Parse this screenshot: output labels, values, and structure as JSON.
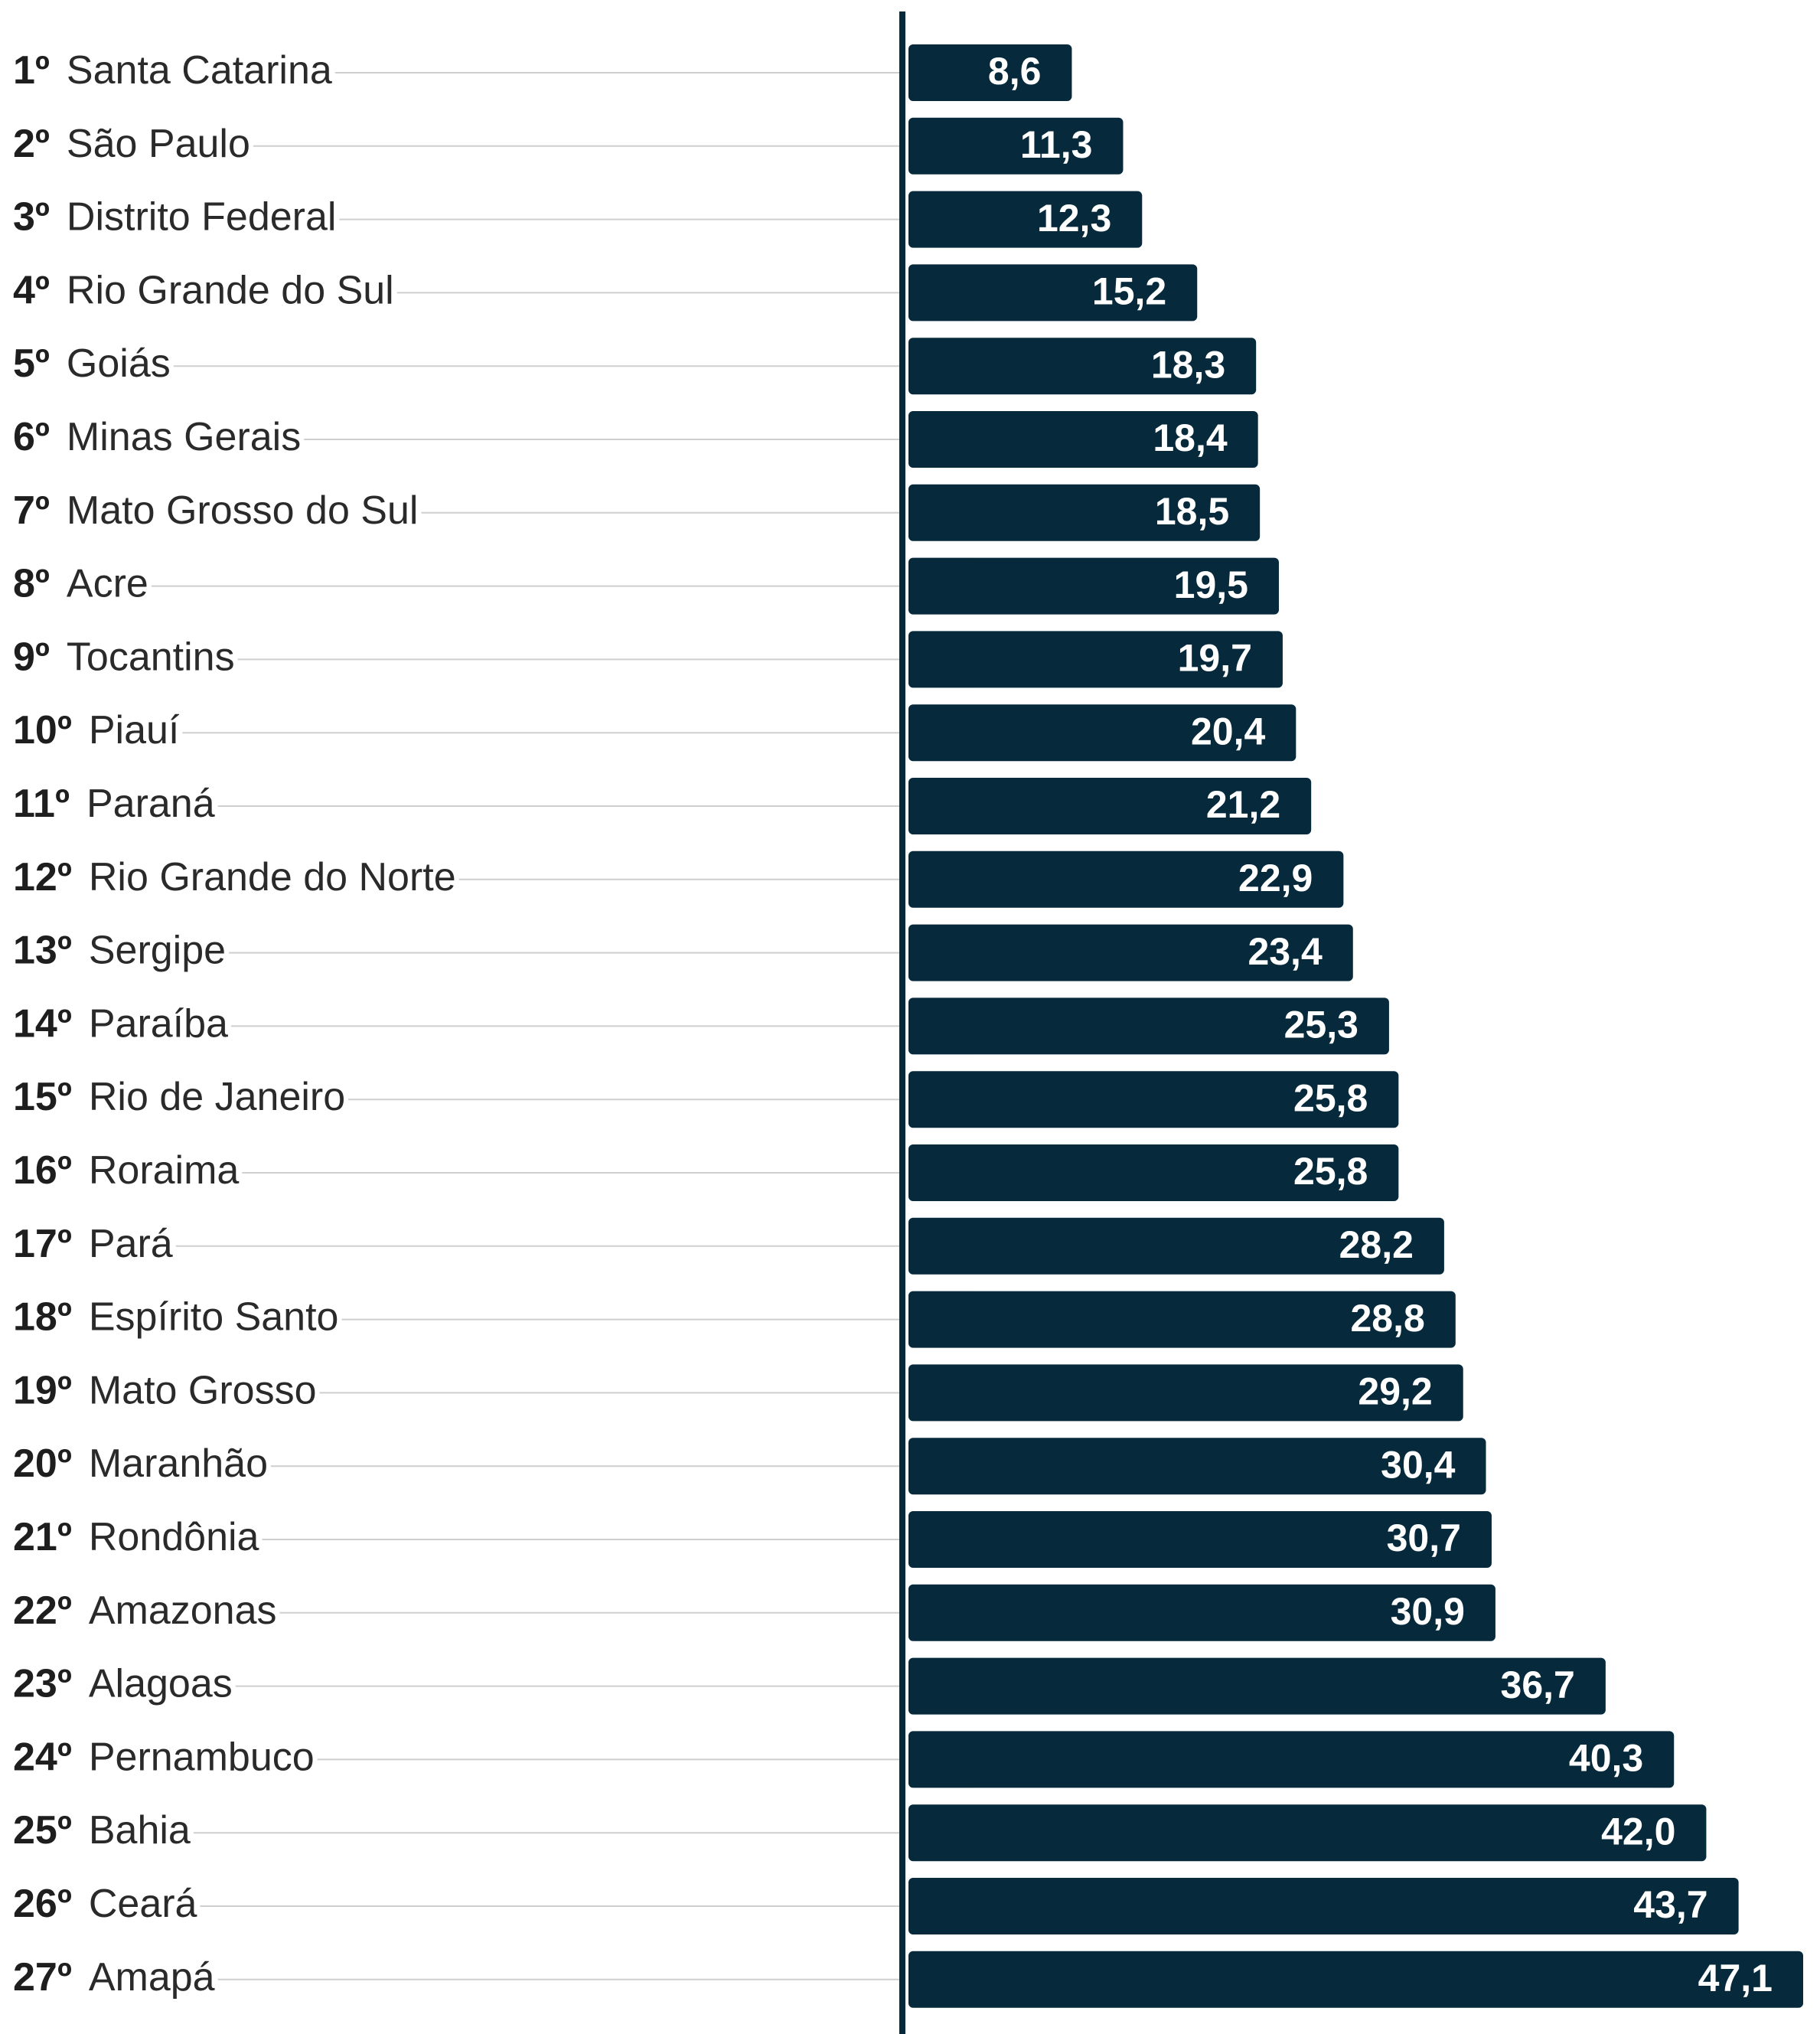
{
  "chart_data": {
    "type": "bar",
    "orientation": "horizontal",
    "color": "#062a3b",
    "ranks": [
      "1º",
      "2º",
      "3º",
      "4º",
      "5º",
      "6º",
      "7º",
      "8º",
      "9º",
      "10º",
      "11º",
      "12º",
      "13º",
      "14º",
      "15º",
      "16º",
      "17º",
      "18º",
      "19º",
      "20º",
      "21º",
      "22º",
      "23º",
      "24º",
      "25º",
      "26º",
      "27º"
    ],
    "categories": [
      "Santa Catarina",
      "São Paulo",
      "Distrito Federal",
      "Rio Grande do Sul",
      "Goiás",
      "Minas Gerais",
      "Mato Grosso do Sul",
      "Acre",
      "Tocantins",
      "Piauí",
      "Paraná",
      "Rio Grande do Norte",
      "Sergipe",
      "Paraíba",
      "Rio de Janeiro",
      "Roraima",
      "Pará",
      "Espírito Santo",
      "Mato Grosso",
      "Maranhão",
      "Rondônia",
      "Amazonas",
      "Alagoas",
      "Pernambuco",
      "Bahia",
      "Ceará",
      "Amapá"
    ],
    "values": [
      8.6,
      11.3,
      12.3,
      15.2,
      18.3,
      18.4,
      18.5,
      19.5,
      19.7,
      20.4,
      21.2,
      22.9,
      23.4,
      25.3,
      25.8,
      25.8,
      28.2,
      28.8,
      29.2,
      30.4,
      30.7,
      30.9,
      36.7,
      40.3,
      42.0,
      43.7,
      47.1
    ],
    "value_labels": [
      "8,6",
      "11,3",
      "12,3",
      "15,2",
      "18,3",
      "18,4",
      "18,5",
      "19,5",
      "19,7",
      "20,4",
      "21,2",
      "22,9",
      "23,4",
      "25,3",
      "25,8",
      "25,8",
      "28,2",
      "28,8",
      "29,2",
      "30,4",
      "30,7",
      "30,9",
      "36,7",
      "40,3",
      "42,0",
      "43,7",
      "47,1"
    ]
  }
}
